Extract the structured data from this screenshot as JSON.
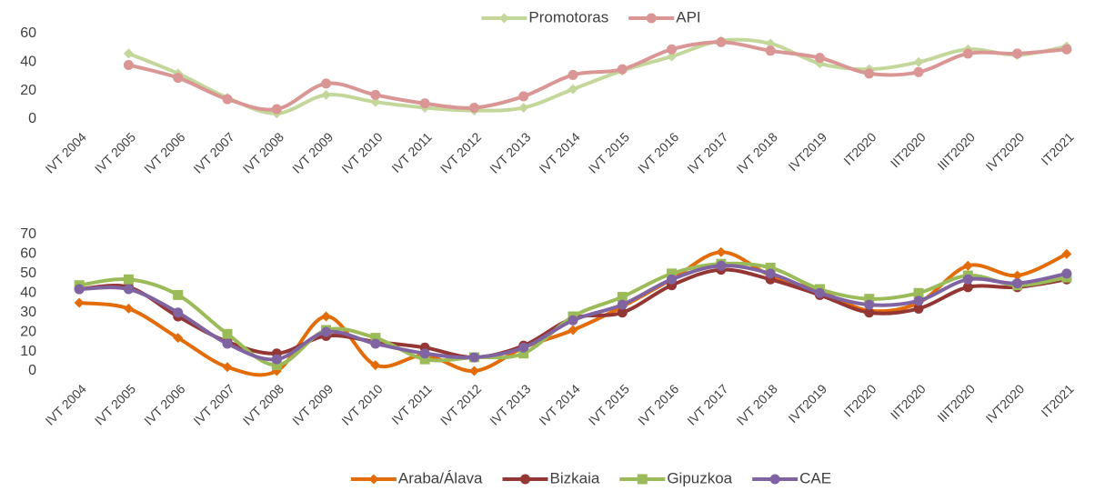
{
  "chart_data": [
    {
      "type": "line",
      "categories": [
        "IVT 2004",
        "IVT 2005",
        "IVT 2006",
        "IVT 2007",
        "IVT 2008",
        "IVT 2009",
        "IVT 2010",
        "IVT 2011",
        "IVT 2012",
        "IVT 2013",
        "IVT 2014",
        "IVT 2015",
        "IVT 2016",
        "IVT 2017",
        "IVT 2018",
        "IVT2019",
        "IT2020",
        "IIT2020",
        "IIIT2020",
        "IVT2020",
        "IT2021"
      ],
      "series": [
        {
          "name": "Promotoras",
          "color": "#c4d79b",
          "marker": "diamond",
          "values": [
            null,
            46,
            32,
            15,
            4,
            17,
            12,
            8,
            6,
            8,
            21,
            34,
            44,
            55,
            53,
            39,
            35,
            40,
            49,
            45,
            51
          ]
        },
        {
          "name": "API",
          "color": "#d99694",
          "marker": "circle",
          "values": [
            null,
            38,
            29,
            14,
            7,
            25,
            17,
            11,
            8,
            16,
            31,
            35,
            49,
            54,
            48,
            43,
            32,
            33,
            46,
            46,
            49
          ]
        }
      ],
      "ylim": [
        0,
        60
      ],
      "yticks": [
        0,
        20,
        40,
        60
      ],
      "legend": "top"
    },
    {
      "type": "line",
      "categories": [
        "IVT 2004",
        "IVT 2005",
        "IVT 2006",
        "IVT 2007",
        "IVT 2008",
        "IVT 2009",
        "IVT 2010",
        "IVT 2011",
        "IVT 2012",
        "IVT 2013",
        "IVT 2014",
        "IVT 2015",
        "IVT 2016",
        "IVT 2017",
        "IVT 2018",
        "IVT2019",
        "IT2020",
        "IIT2020",
        "IIIT2020",
        "IVT2020",
        "IT2021"
      ],
      "series": [
        {
          "name": "Araba/Álava",
          "color": "#e36c09",
          "marker": "diamond",
          "values": [
            35,
            32,
            17,
            2,
            0,
            28,
            3,
            8,
            0,
            12,
            21,
            33,
            47,
            61,
            49,
            41,
            31,
            35,
            54,
            49,
            60
          ]
        },
        {
          "name": "Bizkaia",
          "color": "#943634",
          "marker": "circle",
          "values": [
            42,
            43,
            28,
            15,
            9,
            18,
            15,
            12,
            7,
            13,
            27,
            30,
            44,
            52,
            47,
            39,
            30,
            32,
            43,
            43,
            47
          ]
        },
        {
          "name": "Gipuzkoa",
          "color": "#9bbb59",
          "marker": "square",
          "values": [
            44,
            47,
            39,
            19,
            3,
            21,
            17,
            6,
            7,
            9,
            28,
            38,
            50,
            55,
            53,
            42,
            37,
            40,
            49,
            44,
            48
          ]
        },
        {
          "name": "CAE",
          "color": "#8064a2",
          "marker": "circle",
          "values": [
            42,
            42,
            30,
            14,
            6,
            20,
            14,
            9,
            7,
            12,
            26,
            34,
            47,
            54,
            50,
            40,
            34,
            36,
            47,
            45,
            50
          ]
        }
      ],
      "ylim": [
        0,
        70
      ],
      "yticks": [
        0,
        10,
        20,
        30,
        40,
        50,
        60,
        70
      ],
      "legend": "bottom"
    }
  ]
}
